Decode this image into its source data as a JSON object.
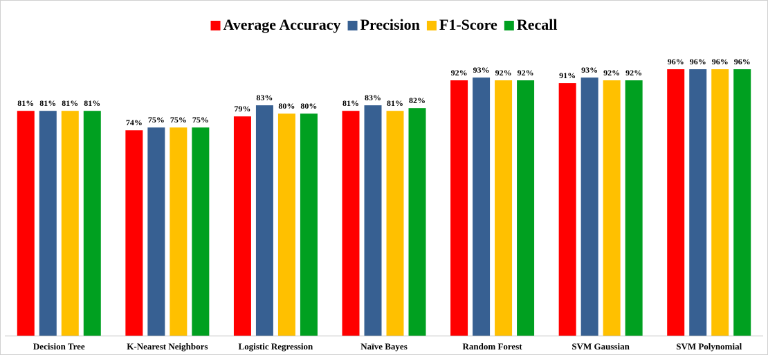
{
  "chart_data": {
    "type": "bar",
    "categories": [
      "Decision Tree",
      "K-Nearest Neighbors",
      "Logistic Regression",
      "Naïve Bayes",
      "Random Forest",
      "SVM Gaussian",
      "SVM Polynomial"
    ],
    "series": [
      {
        "name": "Average Accuracy",
        "color": "#ff0000",
        "values": [
          81,
          74,
          79,
          81,
          92,
          91,
          96
        ],
        "value_labels": [
          "81%",
          "74%",
          "79%",
          "81%",
          "92%",
          "91%",
          "96%"
        ]
      },
      {
        "name": "Precision",
        "color": "#376092",
        "values": [
          81,
          75,
          83,
          83,
          93,
          93,
          96
        ],
        "value_labels": [
          "81%",
          "75%",
          "83%",
          "83%",
          "93%",
          "93%",
          "96%"
        ]
      },
      {
        "name": "F1-Score",
        "color": "#ffc000",
        "values": [
          81,
          75,
          80,
          81,
          92,
          92,
          96
        ],
        "value_labels": [
          "81%",
          "75%",
          "80%",
          "81%",
          "92%",
          "92%",
          "96%"
        ]
      },
      {
        "name": "Recall",
        "color": "#00a020",
        "values": [
          81,
          75,
          80,
          82,
          92,
          92,
          96
        ],
        "value_labels": [
          "81%",
          "75%",
          "80%",
          "82%",
          "92%",
          "92%",
          "96%"
        ]
      }
    ],
    "ylim": [
      0,
      100
    ],
    "legend": "top"
  }
}
